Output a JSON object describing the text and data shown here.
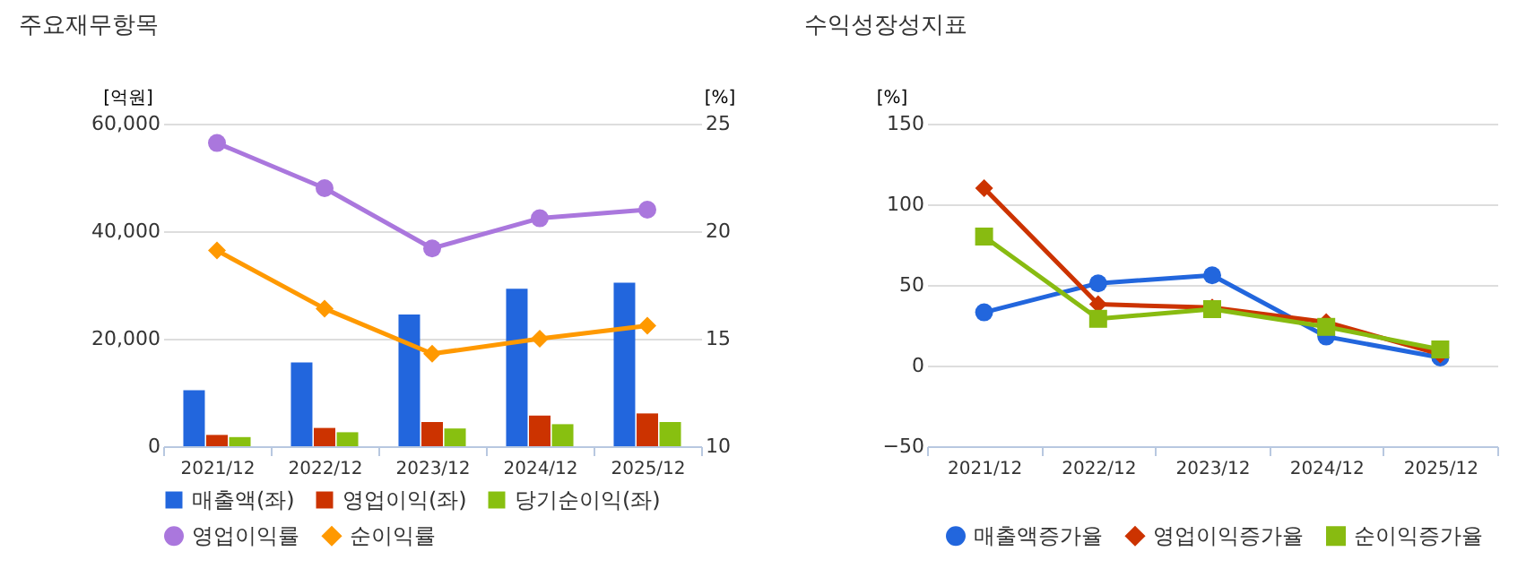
{
  "chart_data": [
    {
      "type": "bar",
      "title": "주요재무항목",
      "categories": [
        "2021/12",
        "2022/12",
        "2023/12",
        "2024/12",
        "2025/12"
      ],
      "ylabel": "[억원]",
      "y2label": "[%]",
      "ylim": [
        0,
        60000
      ],
      "yticks": [
        0,
        {
          "value": 20000,
          "label": "20,000"
        },
        {
          "value": 40000,
          "label": "40,000"
        },
        {
          "value": 60000,
          "label": "60,000"
        }
      ],
      "y2lim": [
        10,
        25
      ],
      "y2ticks": [
        10,
        15,
        20,
        25
      ],
      "grid": "y",
      "legend": "bottom",
      "series": [
        {
          "name": "매출액(좌)",
          "color": "#2266dd",
          "values": [
            10400,
            15600,
            24500,
            29300,
            30400
          ]
        },
        {
          "name": "영업이익(좌)",
          "color": "#cc3300",
          "values": [
            2100,
            3400,
            4500,
            5700,
            6100
          ]
        },
        {
          "name": "당기순이익(좌)",
          "color": "#88c010",
          "values": [
            1700,
            2600,
            3300,
            4100,
            4500
          ]
        },
        {
          "name": "영업이익률",
          "color": "#aa77dd",
          "type": "line",
          "axis": "y2",
          "marker": "circle",
          "values": [
            24.1,
            22.0,
            19.2,
            20.6,
            21.0
          ]
        },
        {
          "name": "순이익률",
          "color": "#ff9900",
          "type": "line",
          "axis": "y2",
          "marker": "diamond",
          "values": [
            19.1,
            16.4,
            14.3,
            15.0,
            15.6
          ]
        }
      ]
    },
    {
      "type": "line",
      "title": "수익성장성지표",
      "categories": [
        "2021/12",
        "2022/12",
        "2023/12",
        "2024/12",
        "2025/12"
      ],
      "ylabel": "[%]",
      "ylim": [
        -50,
        150
      ],
      "yticks": [
        -50,
        0,
        50,
        100,
        150
      ],
      "grid": "y",
      "legend": "bottom",
      "series": [
        {
          "name": "매출액증가율",
          "color": "#2266dd",
          "marker": "circle",
          "values": [
            33,
            51,
            56,
            18,
            5
          ]
        },
        {
          "name": "영업이익증가율",
          "color": "#cc3300",
          "marker": "diamond",
          "values": [
            110,
            38,
            36,
            27,
            7
          ]
        },
        {
          "name": "순이익증가율",
          "color": "#88bb11",
          "marker": "square",
          "values": [
            80,
            29,
            35,
            24,
            10
          ]
        }
      ]
    }
  ]
}
